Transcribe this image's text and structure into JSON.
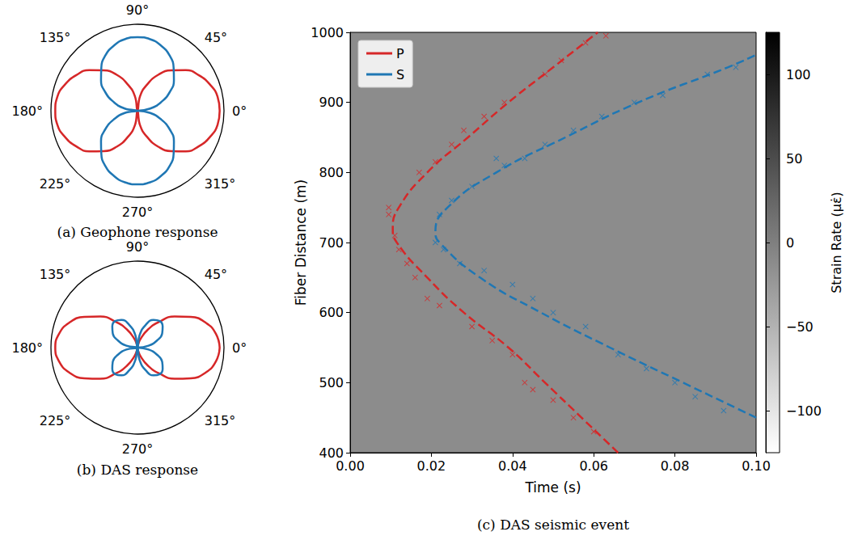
{
  "chart_data": [
    {
      "type": "polar",
      "title": "(a) Geophone response",
      "theta": [
        0,
        10,
        20,
        30,
        40,
        50,
        60,
        70,
        80,
        90,
        100,
        110,
        120,
        130,
        140,
        150,
        160,
        170,
        180,
        190,
        200,
        210,
        220,
        230,
        240,
        250,
        260,
        270,
        280,
        290,
        300,
        310,
        320,
        330,
        340,
        350,
        360
      ],
      "rlim": [
        0,
        1
      ],
      "thetaticks": [
        {
          "value": 0,
          "label": "0°"
        },
        {
          "value": 45,
          "label": "45°"
        },
        {
          "value": 90,
          "label": "90°"
        },
        {
          "value": 135,
          "label": "135°"
        },
        {
          "value": 180,
          "label": "180°"
        },
        {
          "value": 225,
          "label": "225°"
        },
        {
          "value": 270,
          "label": "270°"
        },
        {
          "value": 315,
          "label": "315°"
        }
      ],
      "grid": false,
      "series": [
        {
          "color": "#d62728",
          "values": [
            0.95,
            0.94,
            0.89,
            0.82,
            0.73,
            0.61,
            0.48,
            0.32,
            0.17,
            0,
            0.17,
            0.32,
            0.48,
            0.61,
            0.73,
            0.82,
            0.89,
            0.94,
            0.95,
            0.94,
            0.89,
            0.82,
            0.73,
            0.61,
            0.48,
            0.32,
            0.17,
            0,
            0.17,
            0.32,
            0.48,
            0.61,
            0.73,
            0.82,
            0.89,
            0.94,
            0.95
          ]
        },
        {
          "color": "#1f77b4",
          "values": [
            0,
            0.15,
            0.29,
            0.43,
            0.55,
            0.65,
            0.74,
            0.8,
            0.84,
            0.85,
            0.84,
            0.8,
            0.74,
            0.65,
            0.55,
            0.43,
            0.29,
            0.15,
            0,
            0.15,
            0.29,
            0.43,
            0.55,
            0.65,
            0.74,
            0.8,
            0.84,
            0.85,
            0.84,
            0.8,
            0.74,
            0.65,
            0.55,
            0.43,
            0.29,
            0.15,
            0
          ]
        }
      ]
    },
    {
      "type": "polar",
      "title": "(b) DAS response",
      "theta": [
        0,
        10,
        20,
        30,
        40,
        50,
        60,
        70,
        80,
        90,
        100,
        110,
        120,
        130,
        140,
        150,
        160,
        170,
        180,
        190,
        200,
        210,
        220,
        230,
        240,
        250,
        260,
        270,
        280,
        290,
        300,
        310,
        320,
        330,
        340,
        350,
        360
      ],
      "rlim": [
        0,
        1
      ],
      "thetaticks": [
        {
          "value": 0,
          "label": "0°"
        },
        {
          "value": 45,
          "label": "45°"
        },
        {
          "value": 90,
          "label": "90°"
        },
        {
          "value": 135,
          "label": "135°"
        },
        {
          "value": 180,
          "label": "180°"
        },
        {
          "value": 225,
          "label": "225°"
        },
        {
          "value": 270,
          "label": "270°"
        },
        {
          "value": 315,
          "label": "315°"
        }
      ],
      "grid": false,
      "series": [
        {
          "color": "#d62728",
          "values": [
            0.95,
            0.92,
            0.84,
            0.71,
            0.56,
            0.39,
            0.24,
            0.11,
            0.03,
            0,
            0.03,
            0.11,
            0.24,
            0.39,
            0.56,
            0.71,
            0.84,
            0.92,
            0.95,
            0.92,
            0.84,
            0.71,
            0.56,
            0.39,
            0.24,
            0.11,
            0.03,
            0,
            0.03,
            0.11,
            0.24,
            0.39,
            0.56,
            0.71,
            0.84,
            0.92,
            0.95
          ]
        },
        {
          "color": "#1f77b4",
          "values": [
            0,
            0.13,
            0.24,
            0.33,
            0.38,
            0.4,
            0.37,
            0.28,
            0.15,
            0,
            0.15,
            0.28,
            0.37,
            0.4,
            0.38,
            0.33,
            0.24,
            0.13,
            0,
            0.13,
            0.24,
            0.33,
            0.38,
            0.4,
            0.37,
            0.28,
            0.15,
            0,
            0.15,
            0.28,
            0.37,
            0.4,
            0.38,
            0.33,
            0.24,
            0.13,
            0
          ]
        }
      ]
    },
    {
      "type": "line",
      "title": "(c) DAS seismic event",
      "x_label": "Time (s)",
      "y_label": "Fiber Distance (m)",
      "xlim": [
        0,
        0.1
      ],
      "xticks": [
        {
          "value": 0,
          "label": "0.00"
        },
        {
          "value": 0.02,
          "label": "0.02"
        },
        {
          "value": 0.04,
          "label": "0.04"
        },
        {
          "value": 0.06,
          "label": "0.06"
        },
        {
          "value": 0.08,
          "label": "0.08"
        },
        {
          "value": 0.1,
          "label": "0.10"
        }
      ],
      "ylim": [
        400,
        1000
      ],
      "yticks": [
        400,
        500,
        600,
        700,
        800,
        900,
        1000
      ],
      "grid": false,
      "legend": "upper left",
      "colorbar": {
        "label": "Strain Rate (με̇)",
        "range": [
          -125,
          125
        ],
        "ticks": [
          {
            "value": -100,
            "label": "−100"
          },
          {
            "value": -50,
            "label": "−50"
          },
          0,
          50,
          100
        ]
      },
      "series": [
        {
          "name": "P",
          "color": "#d62728",
          "line_style": "dashed",
          "marker": "x",
          "fit_time": [
            0.066,
            0.057,
            0.048,
            0.039,
            0.028,
            0.019,
            0.0115,
            0.0105,
            0.012,
            0.019,
            0.029,
            0.039,
            0.05,
            0.061
          ],
          "fit_distance": [
            400,
            450,
            500,
            550,
            600,
            650,
            700,
            720,
            750,
            800,
            850,
            900,
            950,
            1000
          ],
          "pick_time": [
            0.0095,
            0.0095,
            0.011,
            0.012,
            0.014,
            0.016,
            0.017,
            0.019,
            0.021,
            0.022,
            0.025,
            0.028,
            0.03,
            0.033,
            0.035,
            0.038,
            0.04,
            0.043,
            0.045,
            0.048,
            0.05,
            0.052,
            0.055,
            0.058,
            0.06,
            0.063
          ],
          "pick_distance": [
            750,
            740,
            710,
            690,
            670,
            650,
            800,
            620,
            815,
            610,
            840,
            860,
            580,
            880,
            560,
            900,
            540,
            500,
            490,
            940,
            475,
            960,
            450,
            985,
            430,
            995
          ]
        },
        {
          "name": "S",
          "color": "#1f77b4",
          "line_style": "dashed",
          "marker": "x",
          "fit_time": [
            0.1,
            0.082,
            0.064,
            0.047,
            0.032,
            0.022,
            0.021,
            0.024,
            0.036,
            0.053,
            0.071,
            0.093,
            0.1
          ],
          "fit_distance": [
            450,
            500,
            550,
            600,
            650,
            700,
            715,
            750,
            800,
            850,
            900,
            950,
            968
          ],
          "pick_time": [
            0.021,
            0.022,
            0.023,
            0.025,
            0.027,
            0.03,
            0.033,
            0.036,
            0.038,
            0.04,
            0.043,
            0.045,
            0.048,
            0.05,
            0.055,
            0.058,
            0.062,
            0.066,
            0.07,
            0.073,
            0.077,
            0.08,
            0.085,
            0.088,
            0.092,
            0.095
          ],
          "pick_distance": [
            700,
            740,
            690,
            760,
            670,
            780,
            660,
            820,
            810,
            640,
            820,
            620,
            840,
            600,
            860,
            580,
            880,
            540,
            900,
            520,
            910,
            500,
            480,
            940,
            460,
            950
          ]
        }
      ]
    }
  ]
}
